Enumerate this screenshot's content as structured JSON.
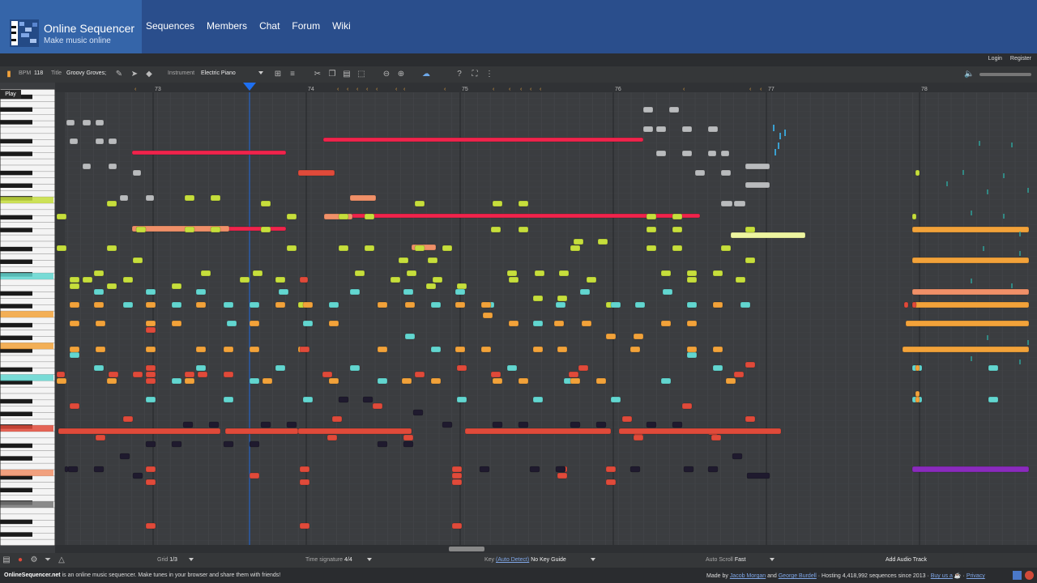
{
  "site": {
    "name": "Online Sequencer",
    "tagline": "Make music online"
  },
  "nav": [
    "Sequences",
    "Members",
    "Chat",
    "Forum",
    "Wiki"
  ],
  "auth": {
    "login": "Login",
    "register": "Register"
  },
  "toolbar": {
    "bpm_label": "BPM",
    "bpm_value": "118",
    "title_label": "Title",
    "title_value": "Groovy Groves;",
    "instrument_label": "Instrument",
    "instrument_value": "Electric Piano"
  },
  "tooltip": {
    "play": "Play"
  },
  "ruler": {
    "bars": [
      "73",
      "74",
      "75",
      "76",
      "77",
      "78"
    ]
  },
  "bottombar": {
    "grid_label": "Grid",
    "grid_value": "1/3",
    "timesig_label": "Time signature",
    "timesig_value": "4/4",
    "key_label": "Key",
    "key_autodetect": "(Auto Detect)",
    "key_value": "No Key Guide",
    "autoscroll_label": "Auto Scroll",
    "autoscroll_value": "Fast",
    "add_track": "Add Audio Track"
  },
  "footer": {
    "site_link": "OnlineSequencer.net",
    "left_text": " is an online music sequencer. Make tunes in your browser and share them with friends!",
    "made_by": "Made by ",
    "author1": "Jacob Morgan",
    "and": " and ",
    "author2": "George Burdell",
    "hosting": " · Hosting 4,418,992 sequences since 2013 · ",
    "buy": "Buy us a",
    "privacy": "Privacy"
  },
  "colors": {
    "header": "#2a4e8c",
    "logo_bg": "#3565a9",
    "grid_bg": "#3b3d40",
    "note_gray": "#b9bbbd",
    "note_green": "#c6de3c",
    "note_cyan": "#62d6d0",
    "note_orange": "#f2a23a",
    "note_red": "#e04a3a",
    "note_pink": "#f0244c",
    "note_salmon": "#f09068",
    "note_purple": "#8a2bbd",
    "note_lime": "#eef5a0",
    "playhead": "#1e6ff0"
  }
}
